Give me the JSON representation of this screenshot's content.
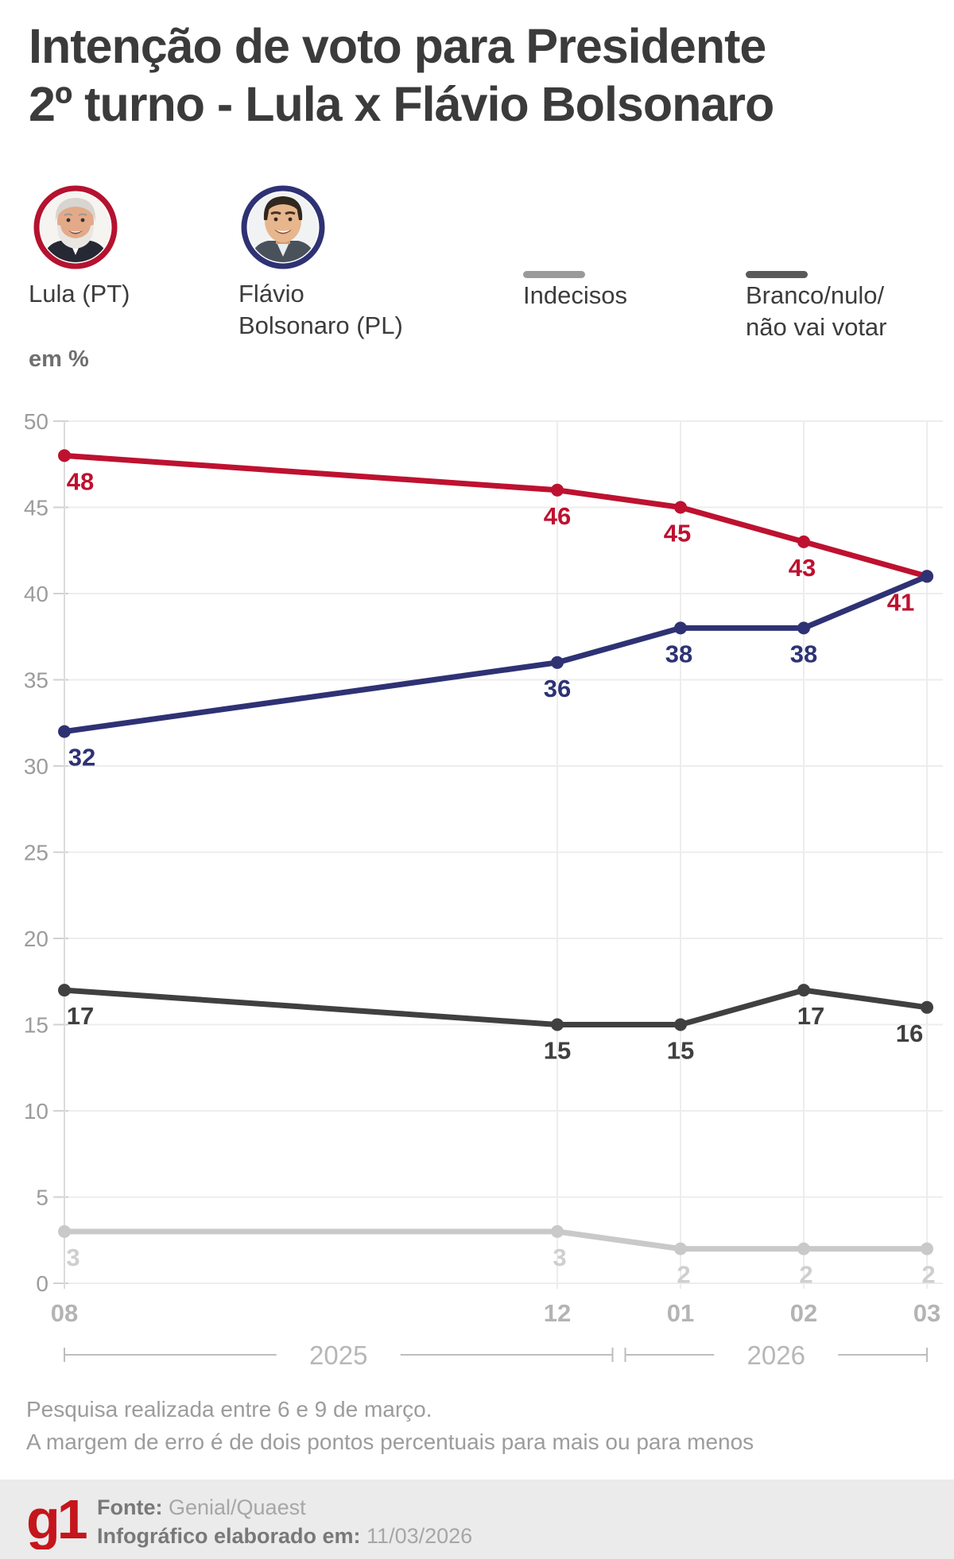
{
  "title": {
    "line1": "Intenção de voto para Presidente",
    "line2": "2º turno - Lula x Flávio Bolsonaro"
  },
  "unit_label": "em %",
  "legend": {
    "items": [
      {
        "label1": "Lula (PT)",
        "label2": "",
        "ring_color": "#b5122f"
      },
      {
        "label1": "Flávio",
        "label2": "Bolsonaro (PL)",
        "ring_color": "#2e3274"
      },
      {
        "label1": "Indecisos",
        "label2": "",
        "swatch_color": "#9a9a9a"
      },
      {
        "label1": "Branco/nulo/",
        "label2": "não vai votar",
        "swatch_color": "#595959"
      }
    ]
  },
  "chart_data": {
    "type": "line",
    "x": [
      "08",
      "12",
      "01",
      "02",
      "03"
    ],
    "x_months": [
      0,
      4,
      5,
      6,
      7
    ],
    "ylim": [
      0,
      50
    ],
    "ytick_step": 5,
    "grid": true,
    "series": [
      {
        "name": "Lula (PT)",
        "color": "#be1130",
        "values": [
          48,
          46,
          45,
          43,
          41
        ],
        "labels": [
          "48",
          "46",
          "45",
          "43",
          "41"
        ],
        "label_dx": [
          20,
          0,
          -4,
          -2,
          -33
        ]
      },
      {
        "name": "Flávio Bolsonaro (PL)",
        "color": "#2e3274",
        "values": [
          32,
          36,
          38,
          38,
          41
        ],
        "labels": [
          "32",
          "36",
          "38",
          "38",
          null
        ],
        "label_dx": [
          22,
          0,
          -2,
          0,
          0
        ]
      },
      {
        "name": "Branco/nulo/não vai votar",
        "color": "#404040",
        "values": [
          17,
          15,
          15,
          17,
          16
        ],
        "labels": [
          "17",
          "15",
          "15",
          "17",
          "16"
        ],
        "label_dx": [
          20,
          0,
          0,
          9,
          -22
        ]
      },
      {
        "name": "Indecisos",
        "color": "#c9c9c9",
        "label_color": "#cfcfcf",
        "values": [
          3,
          3,
          2,
          2,
          2
        ],
        "labels": [
          "3",
          "3",
          "2",
          "2",
          "2"
        ],
        "label_dx": [
          11,
          3,
          4,
          3,
          2
        ]
      }
    ],
    "year_groups": [
      {
        "label": "2025",
        "from": 0,
        "to": 1
      },
      {
        "label": "2026",
        "from": 2,
        "to": 4
      }
    ],
    "legend_position": "top"
  },
  "footnotes": {
    "line1": "Pesquisa realizada entre 6 e 9 de março.",
    "line2": "A margem de erro é de dois pontos percentuais para mais ou para menos"
  },
  "footer": {
    "logo": "g1",
    "logo_color": "#c4161c",
    "fonte_label": "Fonte:",
    "fonte_value": " Genial/Quaest",
    "info_label": "Infográfico elaborado em:",
    "info_value": " 11/03/2026"
  }
}
